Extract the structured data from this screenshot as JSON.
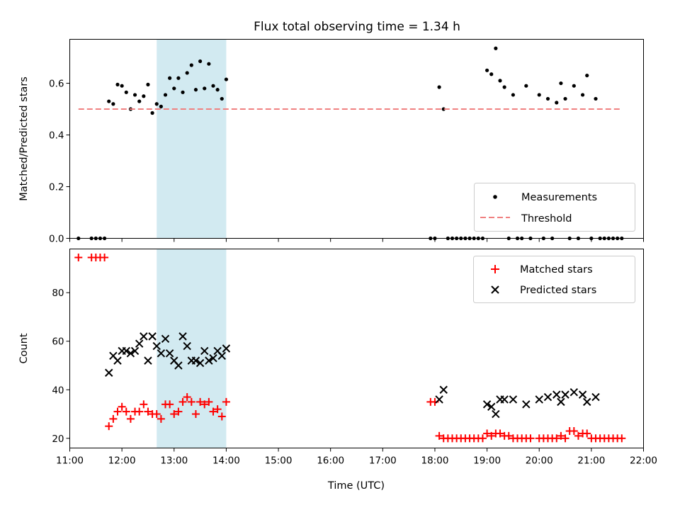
{
  "chart_data": [
    {
      "type": "scatter",
      "title": "Flux total observing time = 1.34 h",
      "xlabel": "",
      "ylabel": "Matched/Predicted stars",
      "xlim": [
        "11:00",
        "22:00"
      ],
      "ylim": [
        0,
        0.77
      ],
      "yticks": [
        0.0,
        0.2,
        0.4,
        0.6
      ],
      "ytick_labels": [
        "0.0",
        "0.2",
        "0.4",
        "0.6"
      ],
      "highlight_span": [
        "12:40",
        "14:00"
      ],
      "highlight_color": "#add8e6",
      "legend": {
        "location": "lower right",
        "entries": [
          "Measurements",
          "Threshold"
        ]
      },
      "series": [
        {
          "name": "Measurements",
          "marker": "dot",
          "color": "#000000",
          "points": [
            [
              "11:10",
              0
            ],
            [
              "11:25",
              0
            ],
            [
              "11:30",
              0
            ],
            [
              "11:35",
              0
            ],
            [
              "11:40",
              0
            ],
            [
              "11:45",
              0.53
            ],
            [
              "11:50",
              0.52
            ],
            [
              "11:55",
              0.595
            ],
            [
              "12:00",
              0.59
            ],
            [
              "12:05",
              0.565
            ],
            [
              "12:10",
              0.5
            ],
            [
              "12:15",
              0.555
            ],
            [
              "12:20",
              0.53
            ],
            [
              "12:25",
              0.55
            ],
            [
              "12:30",
              0.595
            ],
            [
              "12:35",
              0.485
            ],
            [
              "12:40",
              0.52
            ],
            [
              "12:45",
              0.51
            ],
            [
              "12:50",
              0.555
            ],
            [
              "12:55",
              0.62
            ],
            [
              "13:00",
              0.58
            ],
            [
              "13:05",
              0.62
            ],
            [
              "13:10",
              0.565
            ],
            [
              "13:15",
              0.64
            ],
            [
              "13:20",
              0.67
            ],
            [
              "13:25",
              0.575
            ],
            [
              "13:30",
              0.685
            ],
            [
              "13:35",
              0.58
            ],
            [
              "13:40",
              0.675
            ],
            [
              "13:45",
              0.59
            ],
            [
              "13:50",
              0.575
            ],
            [
              "13:55",
              0.54
            ],
            [
              "14:00",
              0.615
            ],
            [
              "17:55",
              0
            ],
            [
              "18:00",
              0
            ],
            [
              "18:05",
              0.585
            ],
            [
              "18:10",
              0.5
            ],
            [
              "18:15",
              0
            ],
            [
              "18:20",
              0
            ],
            [
              "18:25",
              0
            ],
            [
              "18:30",
              0
            ],
            [
              "18:35",
              0
            ],
            [
              "18:40",
              0
            ],
            [
              "18:45",
              0
            ],
            [
              "18:50",
              0
            ],
            [
              "18:55",
              0
            ],
            [
              "19:00",
              0.65
            ],
            [
              "19:05",
              0.635
            ],
            [
              "19:10",
              0.735
            ],
            [
              "19:15",
              0.61
            ],
            [
              "19:20",
              0.585
            ],
            [
              "19:25",
              0
            ],
            [
              "19:30",
              0.555
            ],
            [
              "19:35",
              0
            ],
            [
              "19:40",
              0
            ],
            [
              "19:45",
              0.59
            ],
            [
              "19:50",
              0
            ],
            [
              "20:00",
              0.555
            ],
            [
              "20:05",
              0
            ],
            [
              "20:10",
              0.54
            ],
            [
              "20:15",
              0
            ],
            [
              "20:20",
              0.525
            ],
            [
              "20:25",
              0.6
            ],
            [
              "20:30",
              0.54
            ],
            [
              "20:35",
              0
            ],
            [
              "20:40",
              0.59
            ],
            [
              "20:45",
              0
            ],
            [
              "20:50",
              0.555
            ],
            [
              "20:55",
              0.63
            ],
            [
              "21:00",
              0
            ],
            [
              "21:05",
              0.54
            ],
            [
              "21:10",
              0
            ],
            [
              "21:15",
              0
            ],
            [
              "21:20",
              0
            ],
            [
              "21:25",
              0
            ],
            [
              "21:30",
              0
            ],
            [
              "21:35",
              0
            ]
          ]
        },
        {
          "name": "Threshold",
          "style": "dashed",
          "color": "#f08080",
          "y": 0.5,
          "x_range": [
            "11:10",
            "21:35"
          ]
        }
      ]
    },
    {
      "type": "scatter",
      "title": "",
      "xlabel": "Time (UTC)",
      "ylabel": "Count",
      "xlim": [
        "11:00",
        "22:00"
      ],
      "ylim": [
        16,
        98
      ],
      "yticks": [
        20,
        40,
        60,
        80
      ],
      "ytick_labels": [
        "20",
        "40",
        "60",
        "80"
      ],
      "xticks": [
        "11:00",
        "12:00",
        "13:00",
        "14:00",
        "15:00",
        "16:00",
        "17:00",
        "18:00",
        "19:00",
        "20:00",
        "21:00",
        "22:00"
      ],
      "highlight_span": [
        "12:40",
        "14:00"
      ],
      "highlight_color": "#add8e6",
      "legend": {
        "location": "upper right",
        "entries": [
          "Matched stars",
          "Predicted stars"
        ]
      },
      "series": [
        {
          "name": "Matched stars",
          "marker": "plus",
          "color": "#ff0000",
          "points": [
            [
              "11:10",
              94.5
            ],
            [
              "11:25",
              94.5
            ],
            [
              "11:30",
              94.5
            ],
            [
              "11:35",
              94.5
            ],
            [
              "11:40",
              94.5
            ],
            [
              "11:45",
              25
            ],
            [
              "11:50",
              28
            ],
            [
              "11:55",
              31
            ],
            [
              "12:00",
              33
            ],
            [
              "12:05",
              31
            ],
            [
              "12:10",
              28
            ],
            [
              "12:15",
              31
            ],
            [
              "12:20",
              31
            ],
            [
              "12:25",
              34
            ],
            [
              "12:30",
              31
            ],
            [
              "12:35",
              30
            ],
            [
              "12:40",
              30
            ],
            [
              "12:45",
              28
            ],
            [
              "12:50",
              34
            ],
            [
              "12:55",
              34
            ],
            [
              "13:00",
              30
            ],
            [
              "13:05",
              31
            ],
            [
              "13:10",
              35
            ],
            [
              "13:15",
              37
            ],
            [
              "13:20",
              35
            ],
            [
              "13:25",
              30
            ],
            [
              "13:30",
              35
            ],
            [
              "13:35",
              34
            ],
            [
              "13:40",
              35
            ],
            [
              "13:45",
              31
            ],
            [
              "13:50",
              32
            ],
            [
              "13:55",
              29
            ],
            [
              "14:00",
              35
            ],
            [
              "17:55",
              35
            ],
            [
              "18:00",
              35
            ],
            [
              "18:05",
              21
            ],
            [
              "18:10",
              20
            ],
            [
              "18:15",
              20
            ],
            [
              "18:20",
              20
            ],
            [
              "18:25",
              20
            ],
            [
              "18:30",
              20
            ],
            [
              "18:35",
              20
            ],
            [
              "18:40",
              20
            ],
            [
              "18:45",
              20
            ],
            [
              "18:50",
              20
            ],
            [
              "18:55",
              20
            ],
            [
              "19:00",
              22
            ],
            [
              "19:05",
              21
            ],
            [
              "19:10",
              22
            ],
            [
              "19:15",
              22
            ],
            [
              "19:20",
              21
            ],
            [
              "19:25",
              21
            ],
            [
              "19:30",
              20
            ],
            [
              "19:35",
              20
            ],
            [
              "19:40",
              20
            ],
            [
              "19:45",
              20
            ],
            [
              "19:50",
              20
            ],
            [
              "20:00",
              20
            ],
            [
              "20:05",
              20
            ],
            [
              "20:10",
              20
            ],
            [
              "20:15",
              20
            ],
            [
              "20:20",
              20
            ],
            [
              "20:25",
              21
            ],
            [
              "20:30",
              20
            ],
            [
              "20:35",
              23
            ],
            [
              "20:40",
              23
            ],
            [
              "20:45",
              21
            ],
            [
              "20:50",
              22
            ],
            [
              "20:55",
              22
            ],
            [
              "21:00",
              20
            ],
            [
              "21:05",
              20
            ],
            [
              "21:10",
              20
            ],
            [
              "21:15",
              20
            ],
            [
              "21:20",
              20
            ],
            [
              "21:25",
              20
            ],
            [
              "21:30",
              20
            ],
            [
              "21:35",
              20
            ]
          ]
        },
        {
          "name": "Predicted stars",
          "marker": "x",
          "color": "#000000",
          "points": [
            [
              "11:45",
              47
            ],
            [
              "11:50",
              54
            ],
            [
              "11:55",
              52
            ],
            [
              "12:00",
              56
            ],
            [
              "12:05",
              56
            ],
            [
              "12:10",
              55
            ],
            [
              "12:15",
              56
            ],
            [
              "12:20",
              59
            ],
            [
              "12:25",
              62
            ],
            [
              "12:30",
              52
            ],
            [
              "12:35",
              62
            ],
            [
              "12:40",
              58
            ],
            [
              "12:45",
              55
            ],
            [
              "12:50",
              61
            ],
            [
              "12:55",
              55
            ],
            [
              "13:00",
              52
            ],
            [
              "13:05",
              50
            ],
            [
              "13:10",
              62
            ],
            [
              "13:15",
              58
            ],
            [
              "13:20",
              52
            ],
            [
              "13:25",
              52
            ],
            [
              "13:30",
              51
            ],
            [
              "13:35",
              56
            ],
            [
              "13:40",
              52
            ],
            [
              "13:45",
              53
            ],
            [
              "13:50",
              56
            ],
            [
              "13:55",
              54
            ],
            [
              "14:00",
              57
            ],
            [
              "18:05",
              36
            ],
            [
              "18:10",
              40
            ],
            [
              "19:00",
              34
            ],
            [
              "19:05",
              33
            ],
            [
              "19:10",
              30
            ],
            [
              "19:15",
              36
            ],
            [
              "19:20",
              36
            ],
            [
              "19:30",
              36
            ],
            [
              "19:45",
              34
            ],
            [
              "20:00",
              36
            ],
            [
              "20:10",
              37
            ],
            [
              "20:20",
              38
            ],
            [
              "20:25",
              35
            ],
            [
              "20:30",
              38
            ],
            [
              "20:40",
              39
            ],
            [
              "20:50",
              38
            ],
            [
              "20:55",
              35
            ],
            [
              "21:05",
              37
            ]
          ]
        }
      ]
    }
  ]
}
